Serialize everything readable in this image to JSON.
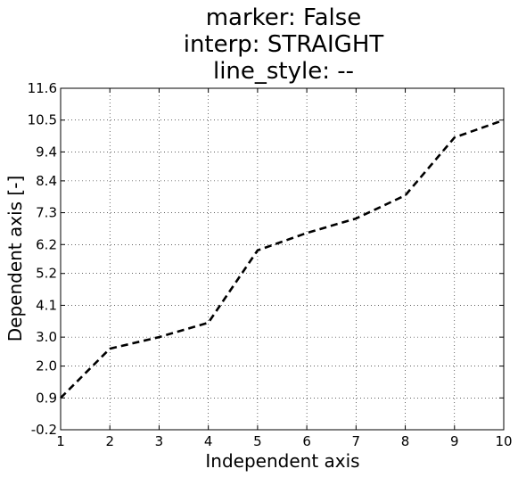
{
  "chart_data": {
    "type": "line",
    "title_lines": [
      "marker: False",
      "interp: STRAIGHT",
      "line_style: --"
    ],
    "xlabel": "Independent axis",
    "ylabel": "Dependent axis [-]",
    "xlim": [
      1,
      10
    ],
    "ylim": [
      -0.2,
      11.6
    ],
    "xticks": [
      1,
      2,
      3,
      4,
      5,
      6,
      7,
      8,
      9,
      10
    ],
    "yticks": [
      -0.2,
      0.9,
      2.0,
      3.0,
      4.1,
      5.2,
      6.2,
      7.3,
      8.4,
      9.4,
      10.5,
      11.6
    ],
    "ytick_labels": [
      "-0.2",
      "0.9",
      "2.0",
      "3.0",
      "4.1",
      "5.2",
      "6.2",
      "7.3",
      "8.4",
      "9.4",
      "10.5",
      "11.6"
    ],
    "grid": true,
    "series": [
      {
        "x": [
          1,
          2,
          3,
          4,
          5,
          6,
          7,
          8,
          9,
          10
        ],
        "y": [
          0.9,
          2.6,
          3.0,
          3.5,
          6.0,
          6.6,
          7.1,
          7.9,
          9.9,
          10.5
        ],
        "line_style": "--",
        "marker": false,
        "color": "#000000"
      }
    ]
  }
}
